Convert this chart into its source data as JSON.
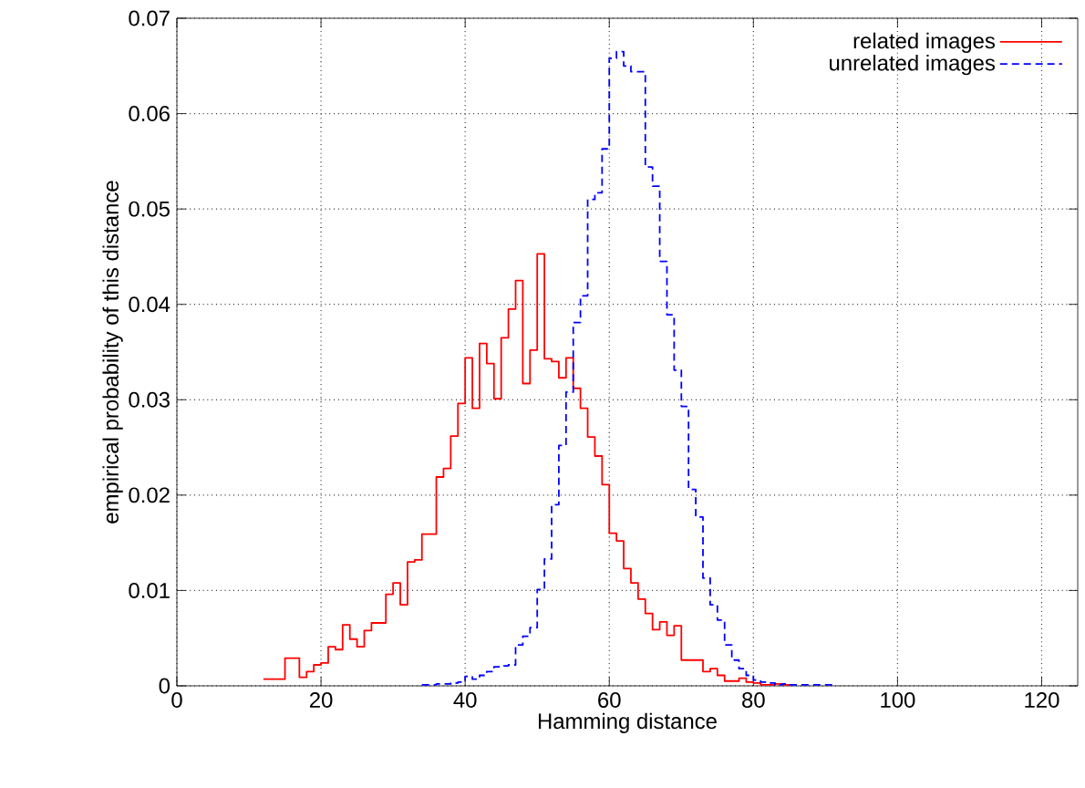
{
  "chart_data": {
    "type": "step",
    "xlabel": "Hamming distance",
    "ylabel": "empirical probability of this distance",
    "xlim": [
      0,
      125
    ],
    "ylim": [
      0,
      0.07
    ],
    "xticks": [
      0,
      20,
      40,
      60,
      80,
      100,
      120
    ],
    "yticks": [
      0,
      0.01,
      0.02,
      0.03,
      0.04,
      0.05,
      0.06,
      0.07
    ],
    "grid": true,
    "legend": "top right",
    "series": [
      {
        "name": "related images",
        "color": "#ff0000",
        "line_style": "solid",
        "x": [
          12,
          13,
          14,
          15,
          16,
          17,
          18,
          19,
          20,
          21,
          22,
          23,
          24,
          25,
          26,
          27,
          28,
          29,
          30,
          31,
          32,
          33,
          34,
          35,
          36,
          37,
          38,
          39,
          40,
          41,
          42,
          43,
          44,
          45,
          46,
          47,
          48,
          49,
          50,
          51,
          52,
          53,
          54,
          55,
          56,
          57,
          58,
          59,
          60,
          61,
          62,
          63,
          64,
          65,
          66,
          67,
          68,
          69,
          70,
          71,
          72,
          73,
          74,
          75,
          76,
          77,
          78,
          79,
          80,
          81,
          82,
          83,
          84,
          85
        ],
        "values": [
          0.0007,
          0.0007,
          0.0007,
          0.0029,
          0.0029,
          0.0009,
          0.0015,
          0.0022,
          0.0024,
          0.0041,
          0.0038,
          0.0064,
          0.0049,
          0.0041,
          0.0058,
          0.0066,
          0.0066,
          0.0096,
          0.0108,
          0.0085,
          0.013,
          0.0132,
          0.0159,
          0.0159,
          0.0219,
          0.0228,
          0.0262,
          0.0296,
          0.0344,
          0.0291,
          0.0359,
          0.0338,
          0.0301,
          0.0365,
          0.0395,
          0.0425,
          0.0317,
          0.0352,
          0.0453,
          0.0343,
          0.034,
          0.0323,
          0.0344,
          0.0312,
          0.0291,
          0.0261,
          0.0241,
          0.0211,
          0.016,
          0.0152,
          0.0123,
          0.0108,
          0.0091,
          0.0076,
          0.0059,
          0.0067,
          0.0053,
          0.0063,
          0.0027,
          0.0027,
          0.0027,
          0.0015,
          0.0018,
          0.0011,
          0.0005,
          0.0005,
          0.0008,
          0.0004,
          0.0003,
          0.0001,
          0.0001,
          0.0002,
          0.0001,
          0
        ]
      },
      {
        "name": "unrelated images",
        "color": "#0000ff",
        "line_style": "dashed",
        "x": [
          34,
          35,
          36,
          37,
          38,
          39,
          40,
          41,
          42,
          43,
          44,
          45,
          46,
          47,
          48,
          49,
          50,
          51,
          52,
          53,
          54,
          55,
          56,
          57,
          58,
          59,
          60,
          61,
          62,
          63,
          64,
          65,
          66,
          67,
          68,
          69,
          70,
          71,
          72,
          73,
          74,
          75,
          76,
          77,
          78,
          79,
          80,
          81,
          82,
          83,
          84,
          85,
          86,
          87,
          88,
          89,
          90,
          91
        ],
        "values": [
          0.0001,
          0.0001,
          0.0002,
          0.0002,
          0.0003,
          0.0004,
          0.001,
          0.0007,
          0.0011,
          0.0015,
          0.002,
          0.0021,
          0.0022,
          0.0043,
          0.0052,
          0.0061,
          0.0101,
          0.0133,
          0.019,
          0.0252,
          0.0308,
          0.0381,
          0.0409,
          0.051,
          0.0517,
          0.0563,
          0.0658,
          0.0665,
          0.065,
          0.0644,
          0.0644,
          0.0544,
          0.0524,
          0.0445,
          0.0389,
          0.0331,
          0.0293,
          0.0206,
          0.0177,
          0.0113,
          0.0085,
          0.0069,
          0.0043,
          0.0027,
          0.0018,
          0.0011,
          0.0006,
          0.0004,
          0.0003,
          0.0001,
          0.0002,
          0.0001,
          0.0001,
          0.0001,
          0.0001,
          0.0001,
          0.0001,
          0
        ]
      }
    ]
  }
}
